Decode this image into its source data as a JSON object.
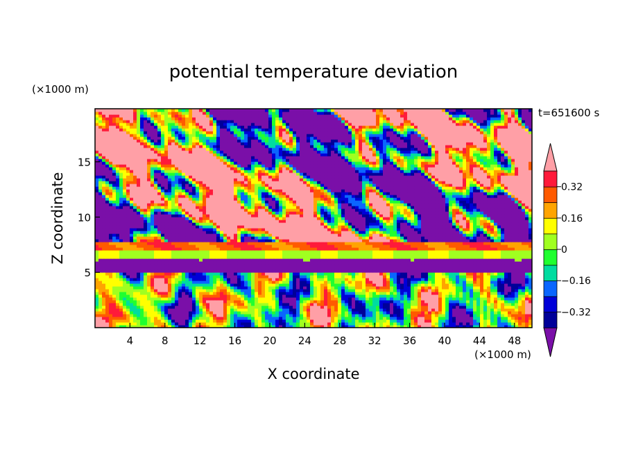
{
  "chart_data": {
    "type": "heatmap",
    "title": "potential temperature deviation",
    "xlabel": "X coordinate",
    "ylabel": "Z coordinate",
    "x_unit": "(×1000 m)",
    "y_unit": "(×1000 m)",
    "time_label": "t=651600 s",
    "xlim": [
      0,
      50
    ],
    "ylim": [
      0,
      19.8
    ],
    "xticks": [
      4,
      8,
      12,
      16,
      20,
      24,
      28,
      32,
      36,
      40,
      44,
      48
    ],
    "yticks": [
      5,
      10,
      15
    ],
    "colorbar": {
      "levels": [
        -0.4,
        -0.32,
        -0.24,
        -0.16,
        -0.08,
        0,
        0.08,
        0.16,
        0.24,
        0.32,
        0.4
      ],
      "tick_labels": [
        "−0.32",
        "−0.16",
        "0",
        "0.16",
        "0.32"
      ],
      "tick_values": [
        -0.32,
        -0.16,
        0,
        0.16,
        0.32
      ],
      "colors": [
        "#7a0fa8",
        "#000099",
        "#0000d8",
        "#0a66ff",
        "#00dca0",
        "#20ff30",
        "#a0ff20",
        "#ffff00",
        "#ffa400",
        "#ff5a00",
        "#ff1a3a",
        "#ff9fa6"
      ],
      "extend": "both"
    },
    "layers": [
      {
        "z_range": [
          0,
          5
        ],
        "description_values": "mixed -0.3 to 0.4"
      },
      {
        "z_range": [
          5,
          6.2
        ],
        "value": -0.45
      },
      {
        "z_range": [
          6.2,
          7
        ],
        "value": 0.1
      },
      {
        "z_range": [
          7,
          7.8
        ],
        "value": 0.3
      },
      {
        "z_range": [
          7.8,
          19.8
        ],
        "description_values": "alternating below -0.4 and above 0.4"
      }
    ]
  }
}
